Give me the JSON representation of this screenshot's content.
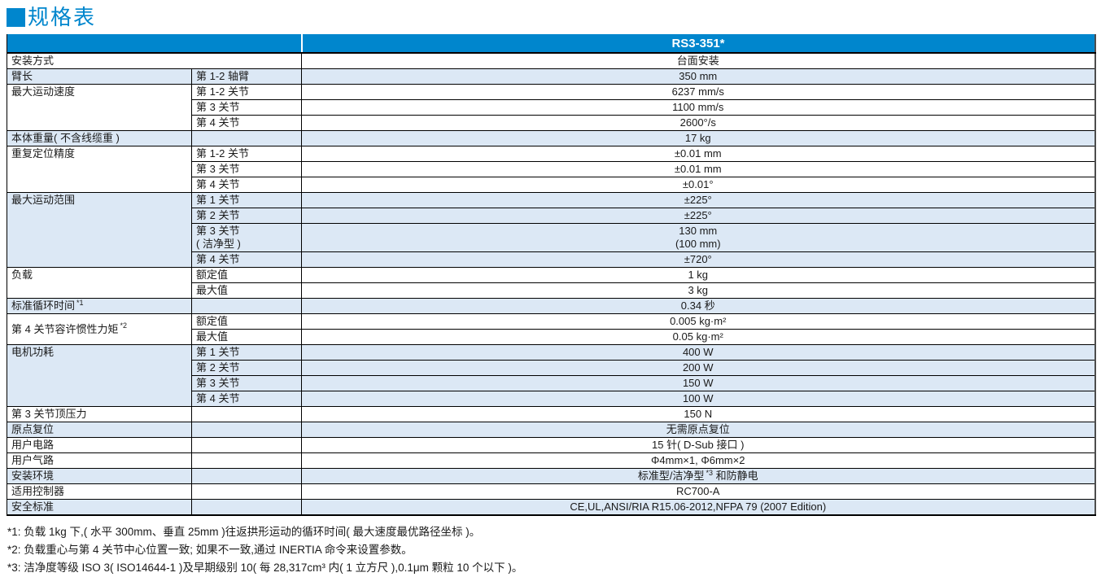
{
  "title": {
    "text": "规格表"
  },
  "header": {
    "model": "RS3-351*"
  },
  "groups": [
    {
      "label": "安装方式",
      "rows": [
        {
          "value": "台面安装"
        }
      ]
    },
    {
      "label": "臂长",
      "rows": [
        {
          "sub": "第 1-2 轴臂",
          "value": "350 mm"
        }
      ]
    },
    {
      "label": "最大运动速度",
      "rows": [
        {
          "sub": "第 1-2 关节",
          "value": "6237 mm/s"
        },
        {
          "sub": "第 3 关节",
          "value": "1100 mm/s"
        },
        {
          "sub": "第 4 关节",
          "value": "2600°/s"
        }
      ]
    },
    {
      "label": "本体重量( 不含线缆重 )",
      "rows": [
        {
          "value": "17 kg"
        }
      ]
    },
    {
      "label": "重复定位精度",
      "rows": [
        {
          "sub": "第 1-2 关节",
          "value": "±0.01 mm"
        },
        {
          "sub": "第 3 关节",
          "value": "±0.01 mm"
        },
        {
          "sub": "第 4 关节",
          "value": "±0.01°"
        }
      ]
    },
    {
      "label": "最大运动范围",
      "rows": [
        {
          "sub": "第 1 关节",
          "value": "±225°"
        },
        {
          "sub": "第 2 关节",
          "value": "±225°"
        },
        {
          "sub": "第 3 关节",
          "sub2": "( 洁净型 )",
          "value": "130 mm",
          "value2": "(100 mm)"
        },
        {
          "sub": "第 4 关节",
          "value": "±720°"
        }
      ]
    },
    {
      "label": "负载",
      "rows": [
        {
          "sub": "额定值",
          "value": "1 kg"
        },
        {
          "sub": "最大值",
          "value": "3 kg"
        }
      ]
    },
    {
      "label": "标准循环时间",
      "label_sup": "*1",
      "rows": [
        {
          "value": "0.34 秒"
        }
      ]
    },
    {
      "label": "第 4 关节容许惯性力矩",
      "label_sup": "*2",
      "rows": [
        {
          "sub": "额定值",
          "value": "0.005 kg·m²"
        },
        {
          "sub": "最大值",
          "value": "0.05 kg·m²"
        }
      ]
    },
    {
      "label": "电机功耗",
      "rows": [
        {
          "sub": "第 1 关节",
          "value": "400 W"
        },
        {
          "sub": "第 2 关节",
          "value": "200 W"
        },
        {
          "sub": "第 3 关节",
          "value": "150 W"
        },
        {
          "sub": "第 4 关节",
          "value": "100 W"
        }
      ]
    },
    {
      "label": "第 3 关节顶压力",
      "rows": [
        {
          "value": "150 N"
        }
      ]
    },
    {
      "label": "原点复位",
      "rows": [
        {
          "value": "无需原点复位"
        }
      ]
    },
    {
      "label": "用户电路",
      "rows": [
        {
          "value": "15 针( D-Sub 接口 )"
        }
      ]
    },
    {
      "label": "用户气路",
      "rows": [
        {
          "value": "Φ4mm×1, Φ6mm×2"
        }
      ]
    },
    {
      "label": "安装环境",
      "rows": [
        {
          "value": "标准型/洁净型",
          "value_sup": "*3",
          "value_post": " 和防静电"
        }
      ]
    },
    {
      "label": "适用控制器",
      "rows": [
        {
          "value": "RC700-A"
        }
      ]
    },
    {
      "label": "安全标准",
      "rows": [
        {
          "value": "CE,UL,ANSI/RIA R15.06-2012,NFPA 79 (2007 Edition)"
        }
      ]
    }
  ],
  "footnotes": [
    "*1: 负载 1kg 下,( 水平 300mm、垂直 25mm )往返拱形运动的循环时间( 最大速度最优路径坐标 )。",
    "*2: 负载重心与第 4 关节中心位置一致; 如果不一致,通过 INERTIA 命令来设置参数。",
    "*3: 洁净度等级 ISO 3( ISO14644-1 )及早期级别 10( 每 28,317cm³ 内( 1 立方尺 ),0.1μm 颗粒 10 个以下 )。"
  ]
}
